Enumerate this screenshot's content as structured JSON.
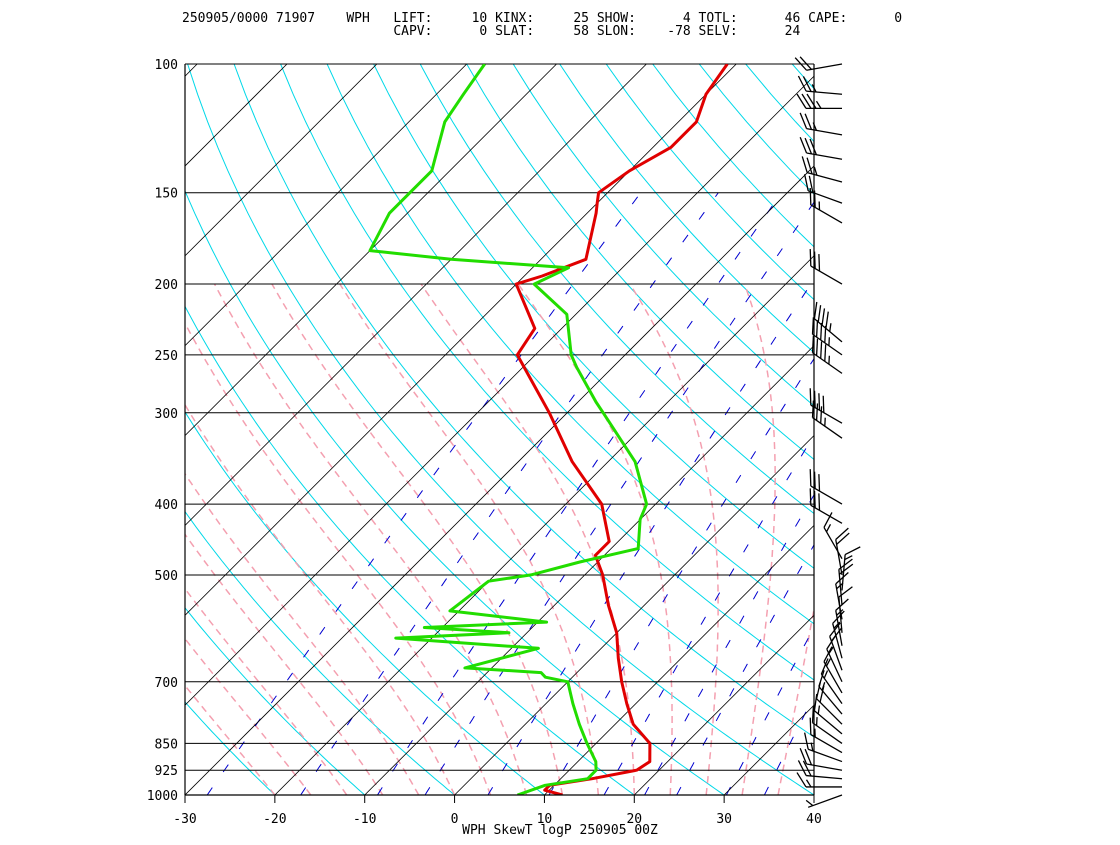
{
  "header": {
    "line1": "250905/0000 71907    WPH   LIFT:     10 KINX:     25 SHOW:      4 TOTL:      46 CAPE:      0",
    "line2": "                           CAPV:      0 SLAT:     58 SLON:    -78 SELV:      24"
  },
  "footer_title": "WPH SkewT logP 250905 00Z",
  "colors": {
    "temperature": "#e00000",
    "dewpoint": "#22dd00",
    "isotherm": "#000000",
    "dry_adiabat": "#00d8e8",
    "moist_adiabat": "#f4a0b0",
    "mixing_ratio": "#0000d0",
    "wind_barb": "#000000"
  },
  "chart_data": {
    "type": "line",
    "title": "WPH SkewT logP 250905 00Z",
    "xlabel": "",
    "ylabel": "",
    "xlim": [
      -30,
      40
    ],
    "ylim": [
      1000,
      100
    ],
    "y_scale": "log",
    "grid": true,
    "x_ticks": [
      "-30",
      "-20",
      "-10",
      "0",
      "10",
      "20",
      "30",
      "40"
    ],
    "pressure_levels": [
      "100",
      "150",
      "200",
      "250",
      "300",
      "400",
      "500",
      "700",
      "850",
      "925",
      "1000"
    ],
    "series": [
      {
        "key": "temperature",
        "points": [
          {
            "p": 1000,
            "t": 12
          },
          {
            "p": 985,
            "t": 9.5
          },
          {
            "p": 970,
            "t": 9.5
          },
          {
            "p": 950,
            "t": 13.5
          },
          {
            "p": 925,
            "t": 17.5
          },
          {
            "p": 900,
            "t": 18
          },
          {
            "p": 850,
            "t": 16
          },
          {
            "p": 800,
            "t": 12
          },
          {
            "p": 750,
            "t": 9
          },
          {
            "p": 700,
            "t": 6
          },
          {
            "p": 650,
            "t": 3
          },
          {
            "p": 600,
            "t": 0
          },
          {
            "p": 550,
            "t": -4
          },
          {
            "p": 500,
            "t": -8
          },
          {
            "p": 470,
            "t": -11
          },
          {
            "p": 450,
            "t": -11
          },
          {
            "p": 400,
            "t": -16
          },
          {
            "p": 350,
            "t": -24
          },
          {
            "p": 300,
            "t": -32
          },
          {
            "p": 250,
            "t": -42
          },
          {
            "p": 230,
            "t": -43
          },
          {
            "p": 200,
            "t": -50
          },
          {
            "p": 195,
            "t": -48
          },
          {
            "p": 185,
            "t": -45
          },
          {
            "p": 160,
            "t": -49
          },
          {
            "p": 155,
            "t": -50
          },
          {
            "p": 150,
            "t": -51
          },
          {
            "p": 140,
            "t": -50
          },
          {
            "p": 130,
            "t": -48
          },
          {
            "p": 120,
            "t": -48
          },
          {
            "p": 110,
            "t": -50
          },
          {
            "p": 100,
            "t": -51
          }
        ]
      },
      {
        "key": "dewpoint",
        "points": [
          {
            "p": 1000,
            "t": 7
          },
          {
            "p": 970,
            "t": 9
          },
          {
            "p": 950,
            "t": 13
          },
          {
            "p": 925,
            "t": 13
          },
          {
            "p": 900,
            "t": 12
          },
          {
            "p": 850,
            "t": 9
          },
          {
            "p": 800,
            "t": 6
          },
          {
            "p": 750,
            "t": 3
          },
          {
            "p": 700,
            "t": 0
          },
          {
            "p": 690,
            "t": -3
          },
          {
            "p": 680,
            "t": -4
          },
          {
            "p": 670,
            "t": -13
          },
          {
            "p": 630,
            "t": -7
          },
          {
            "p": 610,
            "t": -24
          },
          {
            "p": 600,
            "t": -12
          },
          {
            "p": 590,
            "t": -22
          },
          {
            "p": 580,
            "t": -9
          },
          {
            "p": 560,
            "t": -21
          },
          {
            "p": 510,
            "t": -20
          },
          {
            "p": 500,
            "t": -16
          },
          {
            "p": 480,
            "t": -12
          },
          {
            "p": 460,
            "t": -7
          },
          {
            "p": 420,
            "t": -10
          },
          {
            "p": 400,
            "t": -11
          },
          {
            "p": 350,
            "t": -17
          },
          {
            "p": 300,
            "t": -26
          },
          {
            "p": 290,
            "t": -28
          },
          {
            "p": 260,
            "t": -34
          },
          {
            "p": 250,
            "t": -36
          },
          {
            "p": 220,
            "t": -41
          },
          {
            "p": 200,
            "t": -48
          },
          {
            "p": 190,
            "t": -46
          },
          {
            "p": 185,
            "t": -60
          },
          {
            "p": 180,
            "t": -70
          },
          {
            "p": 160,
            "t": -72
          },
          {
            "p": 150,
            "t": -72
          },
          {
            "p": 140,
            "t": -72
          },
          {
            "p": 120,
            "t": -76
          },
          {
            "p": 110,
            "t": -77
          },
          {
            "p": 100,
            "t": -78
          }
        ]
      }
    ],
    "wind_barbs": [
      {
        "p": 1000,
        "dir": 250,
        "kt": 5
      },
      {
        "p": 975,
        "dir": 270,
        "kt": 15
      },
      {
        "p": 950,
        "dir": 275,
        "kt": 20
      },
      {
        "p": 925,
        "dir": 280,
        "kt": 20
      },
      {
        "p": 900,
        "dir": 290,
        "kt": 15
      },
      {
        "p": 875,
        "dir": 300,
        "kt": 15
      },
      {
        "p": 850,
        "dir": 305,
        "kt": 15
      },
      {
        "p": 825,
        "dir": 310,
        "kt": 15
      },
      {
        "p": 800,
        "dir": 315,
        "kt": 20
      },
      {
        "p": 775,
        "dir": 320,
        "kt": 15
      },
      {
        "p": 750,
        "dir": 325,
        "kt": 15
      },
      {
        "p": 725,
        "dir": 330,
        "kt": 15
      },
      {
        "p": 700,
        "dir": 335,
        "kt": 15
      },
      {
        "p": 675,
        "dir": 340,
        "kt": 20
      },
      {
        "p": 650,
        "dir": 345,
        "kt": 15
      },
      {
        "p": 625,
        "dir": 350,
        "kt": 15
      },
      {
        "p": 600,
        "dir": 355,
        "kt": 10
      },
      {
        "p": 575,
        "dir": 350,
        "kt": 15
      },
      {
        "p": 550,
        "dir": 355,
        "kt": 20
      },
      {
        "p": 525,
        "dir": 5,
        "kt": 15
      },
      {
        "p": 500,
        "dir": 350,
        "kt": 20
      },
      {
        "p": 475,
        "dir": 330,
        "kt": 15
      },
      {
        "p": 425,
        "dir": 300,
        "kt": 30
      },
      {
        "p": 400,
        "dir": 300,
        "kt": 30
      },
      {
        "p": 325,
        "dir": 305,
        "kt": 35
      },
      {
        "p": 310,
        "dir": 300,
        "kt": 40
      },
      {
        "p": 265,
        "dir": 305,
        "kt": 45
      },
      {
        "p": 250,
        "dir": 305,
        "kt": 45
      },
      {
        "p": 240,
        "dir": 310,
        "kt": 45
      },
      {
        "p": 200,
        "dir": 300,
        "kt": 30
      },
      {
        "p": 165,
        "dir": 300,
        "kt": 25
      },
      {
        "p": 155,
        "dir": 290,
        "kt": 20
      },
      {
        "p": 145,
        "dir": 285,
        "kt": 25
      },
      {
        "p": 135,
        "dir": 280,
        "kt": 30
      },
      {
        "p": 125,
        "dir": 280,
        "kt": 25
      },
      {
        "p": 115,
        "dir": 270,
        "kt": 35
      },
      {
        "p": 110,
        "dir": 275,
        "kt": 25
      },
      {
        "p": 100,
        "dir": 260,
        "kt": 20
      }
    ]
  }
}
